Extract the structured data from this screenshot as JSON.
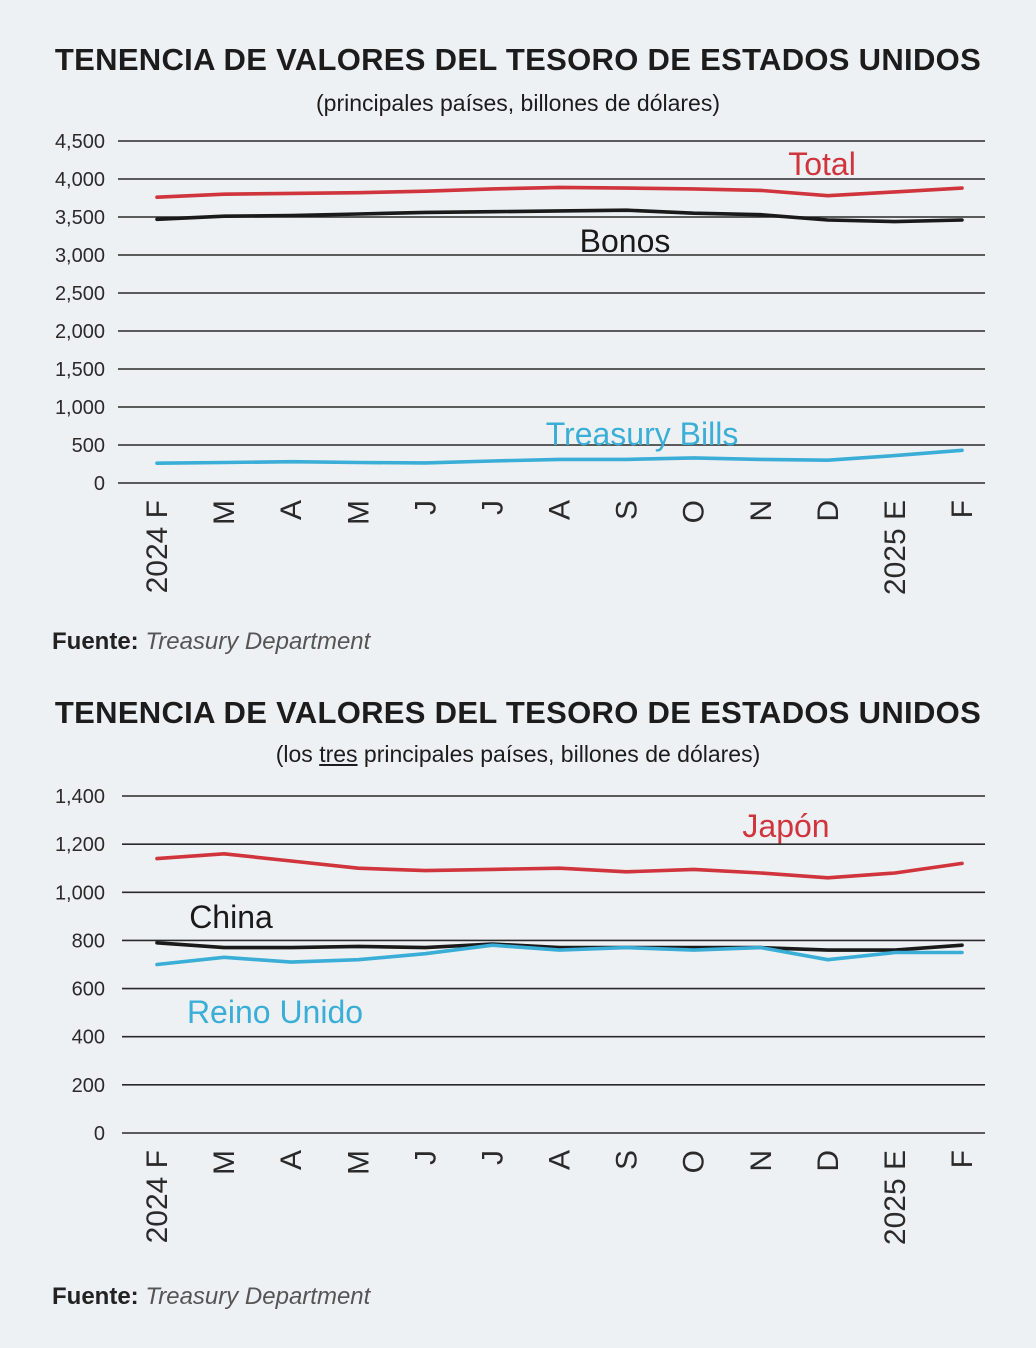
{
  "chart_data": [
    {
      "type": "line",
      "title": "TENENCIA DE VALORES DEL TESORO DE ESTADOS UNIDOS",
      "subtitle": "(principales países, billones de dólares)",
      "source_label": "Fuente:",
      "source": "Treasury Department",
      "categories": [
        "2024 F",
        "M",
        "A",
        "M",
        "J",
        "J",
        "A",
        "S",
        "O",
        "N",
        "D",
        "2025 E",
        "F"
      ],
      "y_ticks": [
        "4,500",
        "4,000",
        "3,500",
        "3,000",
        "2,500",
        "2,000",
        "1,500",
        "1,000",
        "500",
        "0"
      ],
      "y_tick_values": [
        4500,
        4000,
        3500,
        3000,
        2500,
        2000,
        1500,
        1000,
        500,
        0
      ],
      "ylim": [
        0,
        4500
      ],
      "grid": true,
      "series": [
        {
          "name": "Total",
          "color": "#d0343c",
          "values": [
            3760,
            3800,
            3810,
            3820,
            3840,
            3870,
            3890,
            3880,
            3870,
            3850,
            3780,
            3830,
            3880
          ]
        },
        {
          "name": "Bonos",
          "color": "#1a1a1a",
          "values": [
            3470,
            3510,
            3520,
            3540,
            3560,
            3570,
            3580,
            3590,
            3550,
            3530,
            3460,
            3440,
            3460
          ]
        },
        {
          "name": "Treasury Bills",
          "color": "#3aaed6",
          "values": [
            260,
            270,
            280,
            270,
            265,
            290,
            310,
            310,
            330,
            310,
            300,
            360,
            430
          ]
        }
      ]
    },
    {
      "type": "line",
      "title": "TENENCIA DE VALORES DEL TESORO DE ESTADOS UNIDOS",
      "subtitle_pre": "(los ",
      "subtitle_underlined": "tres",
      "subtitle_post": " principales países, billones de dólares)",
      "source_label": "Fuente:",
      "source": "Treasury Department",
      "categories": [
        "2024 F",
        "M",
        "A",
        "M",
        "J",
        "J",
        "A",
        "S",
        "O",
        "N",
        "D",
        "2025 E",
        "F"
      ],
      "y_ticks": [
        "1,400",
        "1,200",
        "1,000",
        "800",
        "600",
        "400",
        "200",
        "0"
      ],
      "y_tick_values": [
        1400,
        1200,
        1000,
        800,
        600,
        400,
        200,
        0
      ],
      "ylim": [
        0,
        1400
      ],
      "grid": true,
      "series": [
        {
          "name": "Japón",
          "color": "#d0343c",
          "values": [
            1140,
            1160,
            1130,
            1100,
            1090,
            1095,
            1100,
            1085,
            1095,
            1080,
            1060,
            1080,
            1120
          ]
        },
        {
          "name": "China",
          "color": "#1a1a1a",
          "values": [
            790,
            770,
            770,
            775,
            770,
            785,
            770,
            770,
            770,
            770,
            760,
            760,
            780
          ]
        },
        {
          "name": "Reino Unido",
          "color": "#3aaed6",
          "values": [
            700,
            730,
            710,
            720,
            745,
            780,
            760,
            770,
            760,
            770,
            720,
            750,
            750
          ]
        }
      ]
    }
  ]
}
